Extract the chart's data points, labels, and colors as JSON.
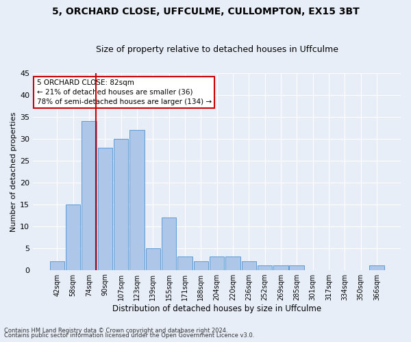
{
  "title": "5, ORCHARD CLOSE, UFFCULME, CULLOMPTON, EX15 3BT",
  "subtitle": "Size of property relative to detached houses in Uffculme",
  "xlabel": "Distribution of detached houses by size in Uffculme",
  "ylabel": "Number of detached properties",
  "categories": [
    "42sqm",
    "58sqm",
    "74sqm",
    "90sqm",
    "107sqm",
    "123sqm",
    "139sqm",
    "155sqm",
    "171sqm",
    "188sqm",
    "204sqm",
    "220sqm",
    "236sqm",
    "252sqm",
    "269sqm",
    "285sqm",
    "301sqm",
    "317sqm",
    "334sqm",
    "350sqm",
    "366sqm"
  ],
  "values": [
    2,
    15,
    34,
    28,
    30,
    32,
    5,
    12,
    3,
    2,
    3,
    3,
    2,
    1,
    1,
    1,
    0,
    0,
    0,
    0,
    1
  ],
  "bar_color": "#aec6e8",
  "bar_edge_color": "#5b9bd5",
  "background_color": "#e8eef8",
  "grid_color": "#ffffff",
  "red_line_x": 2.45,
  "annotation_text": "5 ORCHARD CLOSE: 82sqm\n← 21% of detached houses are smaller (36)\n78% of semi-detached houses are larger (134) →",
  "annotation_box_color": "#ffffff",
  "annotation_box_edge": "#cc0000",
  "footer_line1": "Contains HM Land Registry data © Crown copyright and database right 2024.",
  "footer_line2": "Contains public sector information licensed under the Open Government Licence v3.0.",
  "ylim": [
    0,
    45
  ],
  "yticks": [
    0,
    5,
    10,
    15,
    20,
    25,
    30,
    35,
    40,
    45
  ]
}
